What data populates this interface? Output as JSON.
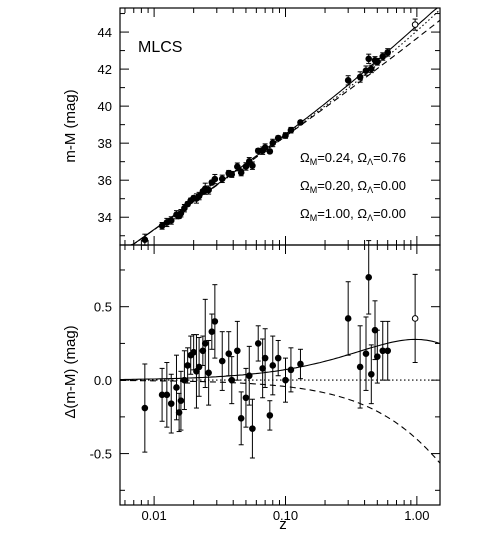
{
  "chart_data": [
    {
      "type": "scatter",
      "panel": "top",
      "title": "MLCS",
      "ylabel": "m-M (mag)",
      "xlabel": "",
      "xscale": "log",
      "xlim": [
        0.0055,
        1.5
      ],
      "ylim": [
        32.5,
        45.3
      ],
      "yticks": [
        34,
        36,
        38,
        40,
        42,
        44
      ],
      "ytick_labels": [
        "34",
        "36",
        "38",
        "40",
        "42",
        "44"
      ],
      "grid": false,
      "legend_position": "lower-right",
      "models": [
        {
          "label_parts": [
            "Ω",
            "M",
            "=0.24, ",
            "Ω",
            "Λ",
            "=0.76"
          ],
          "style": "solid",
          "om": 0.24,
          "ol": 0.76
        },
        {
          "label_parts": [
            "Ω",
            "M",
            "=0.20, ",
            "Ω",
            "Λ",
            "=0.00"
          ],
          "style": "dotted",
          "om": 0.2,
          "ol": 0.0
        },
        {
          "label_parts": [
            "Ω",
            "M",
            "=1.00, ",
            "Ω",
            "Λ",
            "=0.00"
          ],
          "style": "dashed",
          "om": 1.0,
          "ol": 0.0
        }
      ],
      "points": [
        {
          "z": 0.0085,
          "dm": -0.19,
          "err": 0.3
        },
        {
          "z": 0.0115,
          "dm": -0.1,
          "err": 0.18
        },
        {
          "z": 0.0125,
          "dm": -0.1,
          "err": 0.22
        },
        {
          "z": 0.0135,
          "dm": -0.16,
          "err": 0.2
        },
        {
          "z": 0.0148,
          "dm": -0.05,
          "err": 0.22
        },
        {
          "z": 0.0155,
          "dm": -0.22,
          "err": 0.13
        },
        {
          "z": 0.016,
          "dm": -0.14,
          "err": 0.2
        },
        {
          "z": 0.017,
          "dm": 0.0,
          "err": 0.2
        },
        {
          "z": 0.018,
          "dm": 0.1,
          "err": 0.12
        },
        {
          "z": 0.019,
          "dm": 0.17,
          "err": 0.13
        },
        {
          "z": 0.02,
          "dm": 0.19,
          "err": 0.12
        },
        {
          "z": 0.021,
          "dm": 0.06,
          "err": 0.25
        },
        {
          "z": 0.022,
          "dm": 0.09,
          "err": 0.2
        },
        {
          "z": 0.0235,
          "dm": 0.2,
          "err": 0.1
        },
        {
          "z": 0.0245,
          "dm": 0.25,
          "err": 0.3
        },
        {
          "z": 0.026,
          "dm": 0.05,
          "err": 0.22
        },
        {
          "z": 0.0275,
          "dm": 0.33,
          "err": 0.12
        },
        {
          "z": 0.029,
          "dm": 0.4,
          "err": 0.25
        },
        {
          "z": 0.033,
          "dm": 0.13,
          "err": 0.2
        },
        {
          "z": 0.037,
          "dm": 0.18,
          "err": 0.15
        },
        {
          "z": 0.039,
          "dm": 0.0,
          "err": 0.16
        },
        {
          "z": 0.043,
          "dm": 0.2,
          "err": 0.2
        },
        {
          "z": 0.046,
          "dm": -0.26,
          "err": 0.18
        },
        {
          "z": 0.05,
          "dm": -0.12,
          "err": 0.2
        },
        {
          "z": 0.053,
          "dm": 0.03,
          "err": 0.2
        },
        {
          "z": 0.056,
          "dm": -0.33,
          "err": 0.2
        },
        {
          "z": 0.062,
          "dm": 0.25,
          "err": 0.12
        },
        {
          "z": 0.067,
          "dm": 0.08,
          "err": 0.2
        },
        {
          "z": 0.07,
          "dm": 0.15,
          "err": 0.2
        },
        {
          "z": 0.076,
          "dm": -0.24,
          "err": 0.1
        },
        {
          "z": 0.08,
          "dm": 0.1,
          "err": 0.2
        },
        {
          "z": 0.088,
          "dm": 0.15,
          "err": 0.12
        },
        {
          "z": 0.1,
          "dm": 0.0,
          "err": 0.15
        },
        {
          "z": 0.11,
          "dm": 0.07,
          "err": 0.15
        },
        {
          "z": 0.13,
          "dm": 0.11,
          "err": 0.1
        },
        {
          "z": 0.3,
          "dm": 0.42,
          "err": 0.25
        },
        {
          "z": 0.37,
          "dm": 0.09,
          "err": 0.28
        },
        {
          "z": 0.41,
          "dm": 0.18,
          "err": 0.25
        },
        {
          "z": 0.43,
          "dm": 0.7,
          "err": 0.25
        },
        {
          "z": 0.45,
          "dm": 0.04,
          "err": 0.2
        },
        {
          "z": 0.48,
          "dm": 0.34,
          "err": 0.2
        },
        {
          "z": 0.5,
          "dm": 0.16,
          "err": 0.18
        },
        {
          "z": 0.55,
          "dm": 0.2,
          "err": 0.2
        },
        {
          "z": 0.6,
          "dm": 0.2,
          "err": 0.2
        },
        {
          "z": 0.97,
          "dm": 0.42,
          "err": 0.3,
          "open": true
        }
      ]
    },
    {
      "type": "scatter",
      "panel": "bottom",
      "title": "",
      "ylabel": "Δ(m-M) (mag)",
      "xlabel": "z",
      "xscale": "log",
      "xlim": [
        0.0055,
        1.5
      ],
      "ylim": [
        -0.85,
        0.92
      ],
      "xticks": [
        0.01,
        0.1,
        1.0
      ],
      "xtick_labels": [
        "0.01",
        "0.10",
        "1.00"
      ],
      "yticks": [
        -0.5,
        0.0,
        0.5
      ],
      "ytick_labels": [
        "-0.5",
        "0.0",
        "0.5"
      ],
      "grid": false
    }
  ]
}
